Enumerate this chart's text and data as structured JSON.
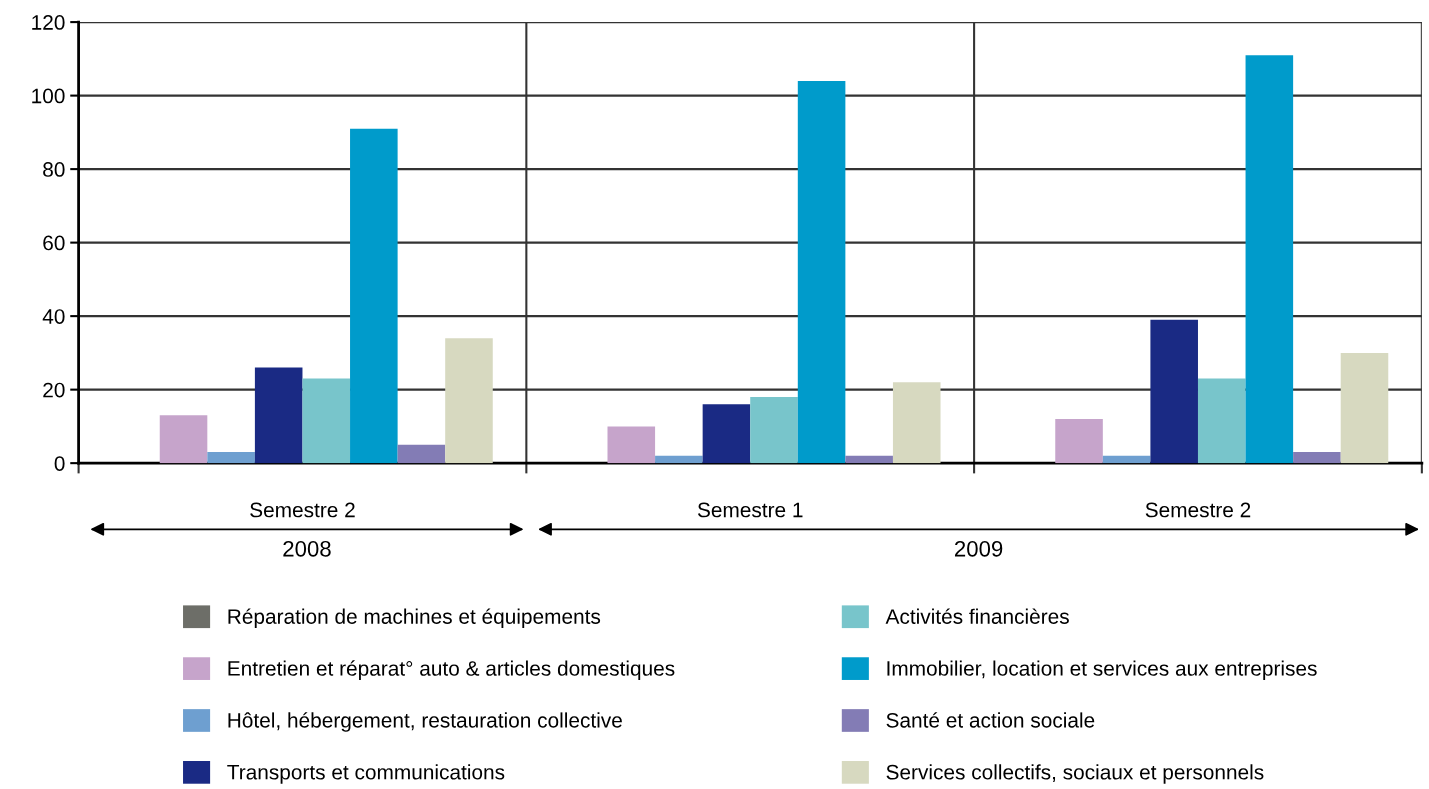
{
  "chart_data": {
    "type": "bar",
    "categories": [
      "Semestre 2",
      "Semestre 1",
      "Semestre 2"
    ],
    "series": [
      {
        "name": "Réparation de machines et équipements",
        "color": "#6d6e68",
        "values": [
          0,
          0,
          0
        ]
      },
      {
        "name": "Entretien et réparat° auto & articles domestiques",
        "color": "#c6a4cb",
        "values": [
          13,
          10,
          12
        ]
      },
      {
        "name": "Hôtel, hébergement, restauration collective",
        "color": "#6e9fd0",
        "values": [
          3,
          2,
          2
        ]
      },
      {
        "name": "Transports et communications",
        "color": "#1a2a84",
        "values": [
          26,
          16,
          39
        ]
      },
      {
        "name": "Activités financières",
        "color": "#78c5cb",
        "values": [
          23,
          18,
          23
        ]
      },
      {
        "name": "Immobilier, location et services aux entreprises",
        "color": "#009bcb",
        "values": [
          91,
          104,
          111
        ]
      },
      {
        "name": "Santé et action sociale",
        "color": "#837cb5",
        "values": [
          5,
          2,
          3
        ]
      },
      {
        "name": "Services collectifs, sociaux et personnels",
        "color": "#d7d9c0",
        "values": [
          34,
          22,
          30
        ]
      }
    ],
    "ylim": [
      0,
      120
    ],
    "yticks": [
      0,
      20,
      40,
      60,
      80,
      100,
      120
    ],
    "grid": true,
    "legend": "bottom",
    "annotations": [
      "2008",
      "2009"
    ]
  }
}
